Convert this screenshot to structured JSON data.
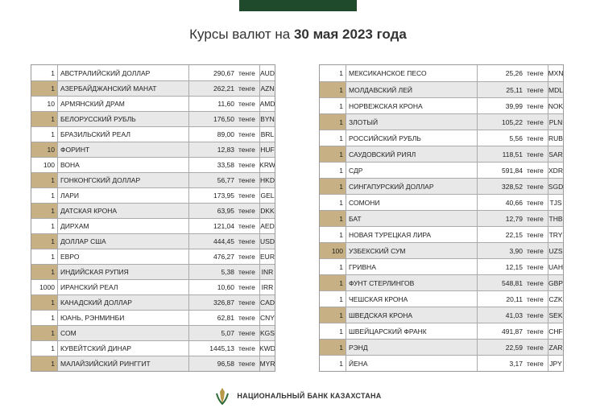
{
  "title": {
    "prefix": "Курсы валют на",
    "date": "30 мая 2023 года"
  },
  "tables": [
    {
      "rows": [
        [
          "1",
          "АВСТРАЛИЙСКИЙ ДОЛЛАР",
          "290,67",
          "тенге",
          "AUD"
        ],
        [
          "1",
          "АЗЕРБАЙДЖАНСКИЙ МАНАТ",
          "262,21",
          "тенге",
          "AZN"
        ],
        [
          "10",
          "АРМЯНСКИЙ ДРАМ",
          "11,60",
          "тенге",
          "AMD"
        ],
        [
          "1",
          "БЕЛОРУССКИЙ РУБЛЬ",
          "176,50",
          "тенге",
          "BYN"
        ],
        [
          "1",
          "БРАЗИЛЬСКИЙ РЕАЛ",
          "89,00",
          "тенге",
          "BRL"
        ],
        [
          "10",
          "ФОРИНТ",
          "12,83",
          "тенге",
          "HUF"
        ],
        [
          "100",
          "ВОНА",
          "33,58",
          "тенге",
          "KRW"
        ],
        [
          "1",
          "ГОНКОНГСКИЙ ДОЛЛАР",
          "56,77",
          "тенге",
          "HKD"
        ],
        [
          "1",
          "ЛАРИ",
          "173,95",
          "тенге",
          "GEL"
        ],
        [
          "1",
          "ДАТСКАЯ КРОНА",
          "63,95",
          "тенге",
          "DKK"
        ],
        [
          "1",
          "ДИРХАМ",
          "121,04",
          "тенге",
          "AED"
        ],
        [
          "1",
          "ДОЛЛАР США",
          "444,45",
          "тенге",
          "USD"
        ],
        [
          "1",
          "ЕВРО",
          "476,27",
          "тенге",
          "EUR"
        ],
        [
          "1",
          "ИНДИЙСКАЯ РУПИЯ",
          "5,38",
          "тенге",
          "INR"
        ],
        [
          "1000",
          "ИРАНСКИЙ РЕАЛ",
          "10,60",
          "тенге",
          "IRR"
        ],
        [
          "1",
          "КАНАДСКИЙ ДОЛЛАР",
          "326,87",
          "тенге",
          "CAD"
        ],
        [
          "1",
          "ЮАНЬ, РЭНМИНБИ",
          "62,81",
          "тенге",
          "CNY"
        ],
        [
          "1",
          "СОМ",
          "5,07",
          "тенге",
          "KGS"
        ],
        [
          "1",
          "КУВЕЙТСКИЙ ДИНАР",
          "1445,13",
          "тенге",
          "KWD"
        ],
        [
          "1",
          "МАЛАЙЗИЙСКИЙ РИНГГИТ",
          "96,58",
          "тенге",
          "MYR"
        ]
      ]
    },
    {
      "rows": [
        [
          "1",
          "МЕКСИКАНСКОЕ ПЕСО",
          "25,26",
          "тенге",
          "MXN"
        ],
        [
          "1",
          "МОЛДАВСКИЙ ЛЕЙ",
          "25,11",
          "тенге",
          "MDL"
        ],
        [
          "1",
          "НОРВЕЖСКАЯ КРОНА",
          "39,99",
          "тенге",
          "NOK"
        ],
        [
          "1",
          "ЗЛОТЫЙ",
          "105,22",
          "тенге",
          "PLN"
        ],
        [
          "1",
          "РОССИЙСКИЙ РУБЛЬ",
          "5,56",
          "тенге",
          "RUB"
        ],
        [
          "1",
          "САУДОВСКИЙ РИЯЛ",
          "118,51",
          "тенге",
          "SAR"
        ],
        [
          "1",
          "СДР",
          "591,84",
          "тенге",
          "XDR"
        ],
        [
          "1",
          "СИНГАПУРСКИЙ ДОЛЛАР",
          "328,52",
          "тенге",
          "SGD"
        ],
        [
          "1",
          "СОМОНИ",
          "40,66",
          "тенге",
          "TJS"
        ],
        [
          "1",
          "БАТ",
          "12,79",
          "тенге",
          "THB"
        ],
        [
          "1",
          "НОВАЯ ТУРЕЦКАЯ ЛИРА",
          "22,15",
          "тенге",
          "TRY"
        ],
        [
          "100",
          "УЗБЕКСКИЙ СУМ",
          "3,90",
          "тенге",
          "UZS"
        ],
        [
          "1",
          "ГРИВНА",
          "12,15",
          "тенге",
          "UAH"
        ],
        [
          "1",
          "ФУНТ СТЕРЛИНГОВ",
          "548,81",
          "тенге",
          "GBP"
        ],
        [
          "1",
          "ЧЕШСКАЯ КРОНА",
          "20,11",
          "тенге",
          "CZK"
        ],
        [
          "1",
          "ШВЕДСКАЯ КРОНА",
          "41,03",
          "тенге",
          "SEK"
        ],
        [
          "1",
          "ШВЕЙЦАРСКИЙ ФРАНК",
          "491,87",
          "тенге",
          "CHF"
        ],
        [
          "1",
          "РЭНД",
          "22,59",
          "тенге",
          "ZAR"
        ],
        [
          "1",
          "ЙЕНА",
          "3,17",
          "тенге",
          "JPY"
        ]
      ]
    }
  ],
  "footer": "НАЦИОНАЛЬНЫЙ БАНК КАЗАХСТАНА"
}
